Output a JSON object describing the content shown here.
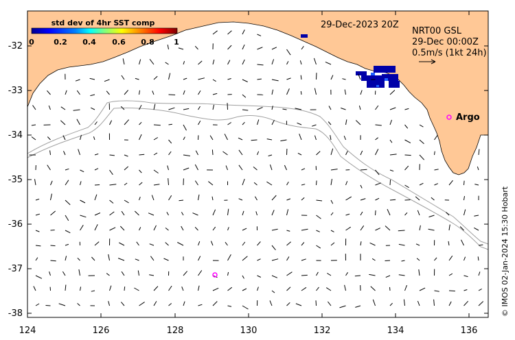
{
  "map": {
    "title_date": "29-Dec-2023 20Z",
    "colorbar": {
      "title": "std dev of 4hr SST comp",
      "ticks": [
        "0",
        "0.2",
        "0.4",
        "0.6",
        "0.8",
        "1"
      ],
      "colors": [
        "#00008f",
        "#0000ff",
        "#007fff",
        "#00ffff",
        "#7fff7f",
        "#ffff00",
        "#ff7f00",
        "#ff0000",
        "#7f0000"
      ]
    },
    "current_info": {
      "line1": "NRT00 GSL",
      "line2": "29-Dec 00:00Z",
      "line3": "0.5m/s (1kt 24h)"
    },
    "argo_label": "Argo",
    "credit": "© IMOS 02-Jan-2024 15:30 Hobart",
    "lon_ticks": [
      "124",
      "126",
      "128",
      "130",
      "132",
      "134",
      "136"
    ],
    "lat_ticks": [
      "-32",
      "-33",
      "-34",
      "-35",
      "-36",
      "-37",
      "-38"
    ],
    "land_color": "#ffc896"
  }
}
